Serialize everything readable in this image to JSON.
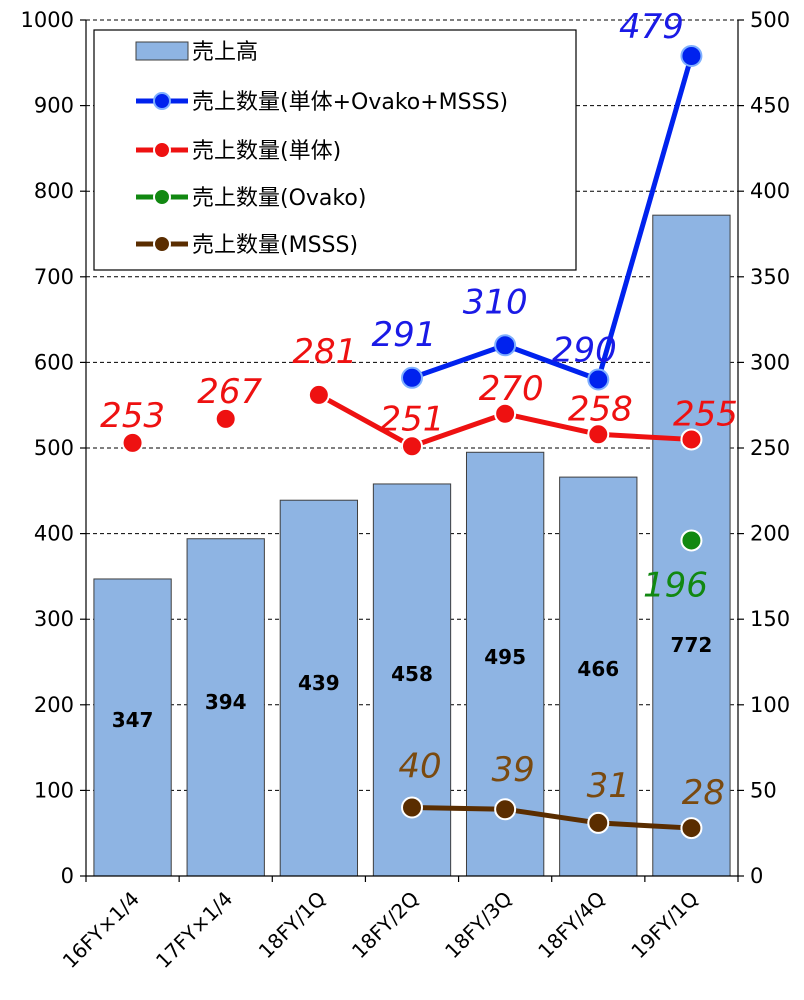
{
  "chart_data": {
    "type": "bar",
    "categories": [
      "16FY×1/4",
      "17FY×1/4",
      "18FY/1Q",
      "18FY/2Q",
      "18FY/3Q",
      "18FY/4Q",
      "19FY/1Q"
    ],
    "bar_series": {
      "name": "売上高",
      "values": [
        347,
        394,
        439,
        458,
        495,
        466,
        772
      ],
      "color": "#8EB4E3",
      "axis": "left"
    },
    "line_series": [
      {
        "name": "売上数量(単体+Ovako+MSSS)",
        "values": [
          null,
          null,
          null,
          291,
          310,
          290,
          479
        ],
        "color": "#0022EE",
        "label_color": "#1A1AE6",
        "axis": "right"
      },
      {
        "name": "売上数量(単体)",
        "values": [
          253,
          267,
          281,
          251,
          270,
          258,
          255
        ],
        "color": "#EE1111",
        "label_color": "#EE1111",
        "axis": "right",
        "connected_from_index": 2
      },
      {
        "name": "売上数量(Ovako)",
        "values": [
          null,
          null,
          null,
          null,
          null,
          null,
          196
        ],
        "color": "#118811",
        "label_color": "#118811",
        "axis": "right"
      },
      {
        "name": "売上数量(MSSS)",
        "values": [
          null,
          null,
          null,
          40,
          39,
          31,
          28
        ],
        "color": "#5A2D00",
        "label_color": "#7A4A10",
        "axis": "right"
      }
    ],
    "y_left": {
      "min": 0,
      "max": 1000,
      "ticks": [
        0,
        100,
        200,
        300,
        400,
        500,
        600,
        700,
        800,
        900,
        1000
      ]
    },
    "y_right": {
      "min": 0,
      "max": 500,
      "ticks": [
        0,
        50,
        100,
        150,
        200,
        250,
        300,
        350,
        400,
        450,
        500
      ]
    },
    "grid": "horizontal-dashed",
    "legend_position": "top-left"
  }
}
